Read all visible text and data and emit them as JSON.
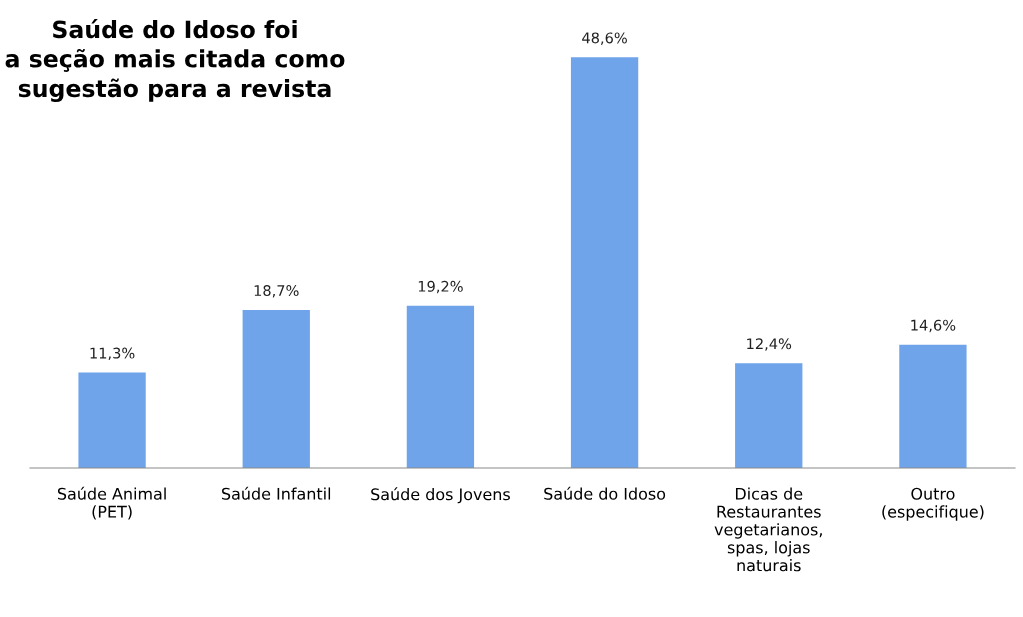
{
  "chart_data": {
    "type": "bar",
    "title": "Saúde do Idoso foi\na seção mais citada como\nsugestão para a revista",
    "categories": [
      "Saúde Animal\n(PET)",
      "Saúde Infantil",
      "Saúde dos Jovens",
      "Saúde do Idoso",
      "Dicas de\nRestaurantes\nvegetarianos,\nspas, lojas\nnaturais",
      "Outro\n(especifique)"
    ],
    "values": [
      11.3,
      18.7,
      19.2,
      48.6,
      12.4,
      14.6
    ],
    "value_labels": [
      "11,3%",
      "18,7%",
      "19,2%",
      "48,6%",
      "12,4%",
      "14,6%"
    ],
    "color": "#6fa3ea",
    "tick_labels": "x",
    "grid": false
  }
}
